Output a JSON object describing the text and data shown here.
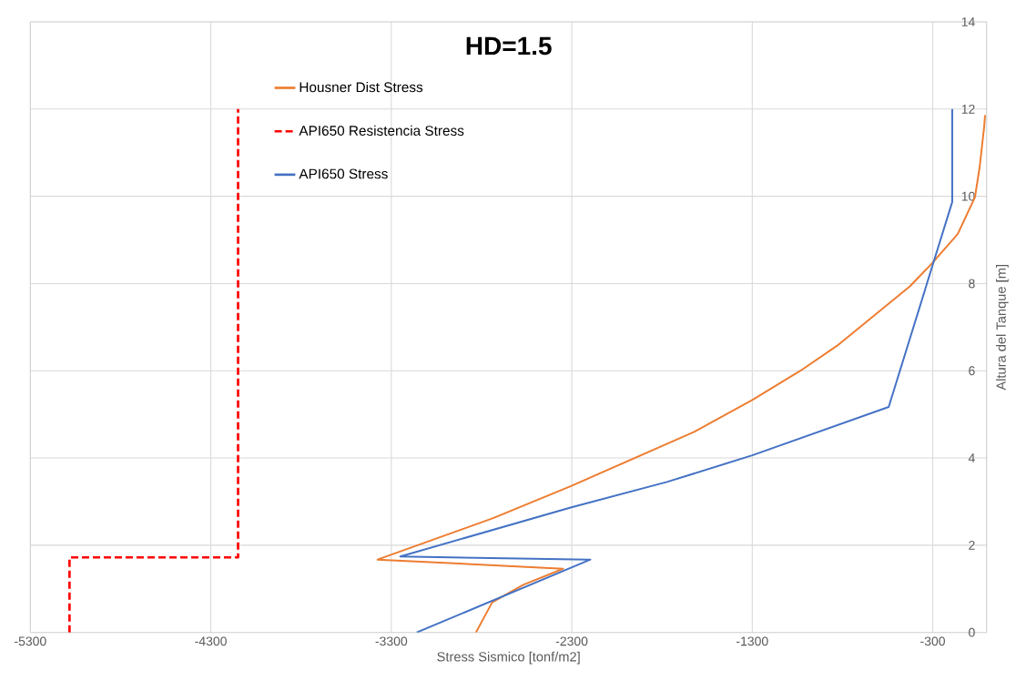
{
  "chart_data": {
    "type": "line",
    "title": "HD=1.5",
    "xlabel": "Stress Sismico [tonf/m2]",
    "ylabel": "Altura del Tanque [m]",
    "xlim": [
      -5300,
      0
    ],
    "ylim": [
      0,
      14
    ],
    "xticks": [
      -5300,
      -4300,
      -3300,
      -2300,
      -1300,
      -300
    ],
    "yticks": [
      0,
      2,
      4,
      6,
      8,
      10,
      12,
      14
    ],
    "grid": true,
    "legend": "top left",
    "marker": "none",
    "series": [
      {
        "name": "Housner Dist Stress",
        "color": "#ed7d31",
        "line_style": "solid",
        "x": [
          -2831,
          -2741,
          -2569,
          -2348,
          -3376,
          -2736,
          -2307,
          -1622,
          -1300,
          -1033,
          -831,
          -428,
          -302,
          -161,
          -66,
          -40,
          -15,
          -10
        ],
        "values": [
          0,
          0.69,
          1.09,
          1.46,
          1.67,
          2.62,
          3.35,
          4.6,
          5.33,
          6.0,
          6.57,
          7.93,
          8.47,
          9.14,
          9.98,
          10.67,
          11.59,
          11.86
        ]
      },
      {
        "name": "API650 Resistencia Stress",
        "color": "#ff0000",
        "line_style": "dashed",
        "x": [
          -5083,
          -5083,
          -4149,
          -4149
        ],
        "values": [
          0,
          1.72,
          1.72,
          12
        ]
      },
      {
        "name": "API650 Stress",
        "color": "#4472c4",
        "line_style": "solid",
        "x": [
          -3159,
          -2197,
          -3250,
          -2302,
          -1773,
          -1300,
          -544,
          -192,
          -192
        ],
        "values": [
          0,
          1.67,
          1.74,
          2.87,
          3.45,
          4.06,
          5.17,
          9.87,
          12
        ]
      }
    ]
  }
}
